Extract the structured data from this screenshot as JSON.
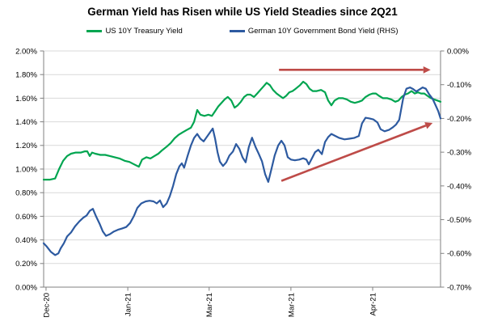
{
  "chart_data": {
    "type": "line",
    "title": "German Yield has Risen while US Yield Steadies since 2Q21",
    "grid": true,
    "legend_position": "top",
    "colors": {
      "us_line": "#00A550",
      "german_line": "#2D5AA0",
      "arrow": "#BE4B48",
      "gridline": "#D9D9D9",
      "axis": "#808080",
      "text": "#000000"
    },
    "left_axis": {
      "min": 0.0,
      "max": 2.0,
      "step": 0.2,
      "labels": [
        "2.00%",
        "1.80%",
        "1.60%",
        "1.40%",
        "1.20%",
        "1.00%",
        "0.80%",
        "0.60%",
        "0.40%",
        "0.20%",
        "0.00%"
      ]
    },
    "right_axis": {
      "min": -0.7,
      "max": 0.0,
      "step": 0.1,
      "labels": [
        "0.00%",
        "-0.10%",
        "-0.20%",
        "-0.30%",
        "-0.40%",
        "-0.50%",
        "-0.60%",
        "-0.70%"
      ]
    },
    "x_ticks": [
      {
        "t": 0.006,
        "label": "Dec-20"
      },
      {
        "t": 0.212,
        "label": "Jan-21"
      },
      {
        "t": 0.417,
        "label": "Mar-21"
      },
      {
        "t": 0.623,
        "label": "Mar-21"
      },
      {
        "t": 0.829,
        "label": "Apr-21"
      }
    ],
    "series": [
      {
        "name": "US 10Y Treasury Yield",
        "axis": "left",
        "color": "#00A550",
        "points": [
          [
            0.0,
            0.91
          ],
          [
            0.016,
            0.91
          ],
          [
            0.029,
            0.92
          ],
          [
            0.039,
            1.0
          ],
          [
            0.049,
            1.07
          ],
          [
            0.059,
            1.11
          ],
          [
            0.069,
            1.13
          ],
          [
            0.081,
            1.14
          ],
          [
            0.094,
            1.14
          ],
          [
            0.104,
            1.15
          ],
          [
            0.11,
            1.15
          ],
          [
            0.116,
            1.11
          ],
          [
            0.122,
            1.14
          ],
          [
            0.13,
            1.13
          ],
          [
            0.143,
            1.12
          ],
          [
            0.155,
            1.12
          ],
          [
            0.167,
            1.11
          ],
          [
            0.179,
            1.1
          ],
          [
            0.191,
            1.09
          ],
          [
            0.204,
            1.07
          ],
          [
            0.216,
            1.06
          ],
          [
            0.228,
            1.04
          ],
          [
            0.24,
            1.02
          ],
          [
            0.248,
            1.08
          ],
          [
            0.259,
            1.1
          ],
          [
            0.269,
            1.09
          ],
          [
            0.279,
            1.11
          ],
          [
            0.289,
            1.13
          ],
          [
            0.299,
            1.16
          ],
          [
            0.31,
            1.19
          ],
          [
            0.32,
            1.22
          ],
          [
            0.33,
            1.26
          ],
          [
            0.34,
            1.29
          ],
          [
            0.35,
            1.31
          ],
          [
            0.36,
            1.33
          ],
          [
            0.371,
            1.35
          ],
          [
            0.379,
            1.4
          ],
          [
            0.387,
            1.5
          ],
          [
            0.395,
            1.46
          ],
          [
            0.405,
            1.45
          ],
          [
            0.415,
            1.46
          ],
          [
            0.424,
            1.45
          ],
          [
            0.432,
            1.49
          ],
          [
            0.44,
            1.53
          ],
          [
            0.448,
            1.56
          ],
          [
            0.456,
            1.59
          ],
          [
            0.464,
            1.61
          ],
          [
            0.473,
            1.58
          ],
          [
            0.481,
            1.52
          ],
          [
            0.489,
            1.54
          ],
          [
            0.497,
            1.57
          ],
          [
            0.505,
            1.61
          ],
          [
            0.513,
            1.63
          ],
          [
            0.521,
            1.63
          ],
          [
            0.53,
            1.61
          ],
          [
            0.538,
            1.64
          ],
          [
            0.546,
            1.67
          ],
          [
            0.554,
            1.7
          ],
          [
            0.562,
            1.73
          ],
          [
            0.57,
            1.71
          ],
          [
            0.578,
            1.67
          ],
          [
            0.587,
            1.64
          ],
          [
            0.595,
            1.62
          ],
          [
            0.603,
            1.6
          ],
          [
            0.611,
            1.62
          ],
          [
            0.619,
            1.65
          ],
          [
            0.627,
            1.66
          ],
          [
            0.635,
            1.68
          ],
          [
            0.646,
            1.71
          ],
          [
            0.654,
            1.74
          ],
          [
            0.662,
            1.72
          ],
          [
            0.67,
            1.68
          ],
          [
            0.678,
            1.66
          ],
          [
            0.688,
            1.66
          ],
          [
            0.699,
            1.67
          ],
          [
            0.709,
            1.65
          ],
          [
            0.717,
            1.58
          ],
          [
            0.725,
            1.54
          ],
          [
            0.733,
            1.58
          ],
          [
            0.743,
            1.6
          ],
          [
            0.754,
            1.6
          ],
          [
            0.764,
            1.59
          ],
          [
            0.774,
            1.57
          ],
          [
            0.784,
            1.56
          ],
          [
            0.794,
            1.57
          ],
          [
            0.802,
            1.58
          ],
          [
            0.811,
            1.61
          ],
          [
            0.821,
            1.63
          ],
          [
            0.829,
            1.64
          ],
          [
            0.837,
            1.64
          ],
          [
            0.845,
            1.62
          ],
          [
            0.855,
            1.6
          ],
          [
            0.866,
            1.6
          ],
          [
            0.876,
            1.59
          ],
          [
            0.886,
            1.57
          ],
          [
            0.894,
            1.58
          ],
          [
            0.902,
            1.61
          ],
          [
            0.91,
            1.63
          ],
          [
            0.918,
            1.64
          ],
          [
            0.927,
            1.66
          ],
          [
            0.935,
            1.64
          ],
          [
            0.943,
            1.65
          ],
          [
            0.951,
            1.64
          ],
          [
            0.959,
            1.64
          ],
          [
            0.967,
            1.62
          ],
          [
            0.976,
            1.6
          ],
          [
            0.984,
            1.59
          ],
          [
            0.992,
            1.58
          ],
          [
            1.0,
            1.57
          ]
        ]
      },
      {
        "name": "German 10Y Government Bond Yield (RHS)",
        "axis": "right",
        "color": "#2D5AA0",
        "points": [
          [
            0.0,
            -0.57
          ],
          [
            0.008,
            -0.58
          ],
          [
            0.018,
            -0.595
          ],
          [
            0.029,
            -0.605
          ],
          [
            0.037,
            -0.6
          ],
          [
            0.043,
            -0.585
          ],
          [
            0.051,
            -0.57
          ],
          [
            0.059,
            -0.55
          ],
          [
            0.069,
            -0.538
          ],
          [
            0.079,
            -0.52
          ],
          [
            0.09,
            -0.505
          ],
          [
            0.1,
            -0.494
          ],
          [
            0.108,
            -0.488
          ],
          [
            0.116,
            -0.474
          ],
          [
            0.124,
            -0.468
          ],
          [
            0.132,
            -0.49
          ],
          [
            0.141,
            -0.512
          ],
          [
            0.149,
            -0.535
          ],
          [
            0.157,
            -0.548
          ],
          [
            0.167,
            -0.543
          ],
          [
            0.177,
            -0.535
          ],
          [
            0.187,
            -0.53
          ],
          [
            0.198,
            -0.526
          ],
          [
            0.208,
            -0.522
          ],
          [
            0.218,
            -0.51
          ],
          [
            0.228,
            -0.488
          ],
          [
            0.236,
            -0.465
          ],
          [
            0.246,
            -0.452
          ],
          [
            0.257,
            -0.446
          ],
          [
            0.267,
            -0.444
          ],
          [
            0.277,
            -0.446
          ],
          [
            0.285,
            -0.452
          ],
          [
            0.293,
            -0.443
          ],
          [
            0.301,
            -0.463
          ],
          [
            0.31,
            -0.452
          ],
          [
            0.318,
            -0.43
          ],
          [
            0.326,
            -0.4
          ],
          [
            0.334,
            -0.365
          ],
          [
            0.342,
            -0.342
          ],
          [
            0.348,
            -0.333
          ],
          [
            0.354,
            -0.346
          ],
          [
            0.363,
            -0.31
          ],
          [
            0.371,
            -0.28
          ],
          [
            0.379,
            -0.258
          ],
          [
            0.387,
            -0.246
          ],
          [
            0.395,
            -0.26
          ],
          [
            0.403,
            -0.268
          ],
          [
            0.411,
            -0.255
          ],
          [
            0.42,
            -0.24
          ],
          [
            0.426,
            -0.23
          ],
          [
            0.432,
            -0.26
          ],
          [
            0.438,
            -0.3
          ],
          [
            0.444,
            -0.328
          ],
          [
            0.452,
            -0.341
          ],
          [
            0.46,
            -0.33
          ],
          [
            0.468,
            -0.31
          ],
          [
            0.477,
            -0.298
          ],
          [
            0.485,
            -0.276
          ],
          [
            0.493,
            -0.29
          ],
          [
            0.501,
            -0.315
          ],
          [
            0.509,
            -0.33
          ],
          [
            0.517,
            -0.285
          ],
          [
            0.525,
            -0.257
          ],
          [
            0.534,
            -0.285
          ],
          [
            0.542,
            -0.305
          ],
          [
            0.55,
            -0.327
          ],
          [
            0.558,
            -0.365
          ],
          [
            0.566,
            -0.388
          ],
          [
            0.574,
            -0.35
          ],
          [
            0.582,
            -0.31
          ],
          [
            0.591,
            -0.28
          ],
          [
            0.599,
            -0.266
          ],
          [
            0.607,
            -0.28
          ],
          [
            0.615,
            -0.315
          ],
          [
            0.623,
            -0.322
          ],
          [
            0.633,
            -0.324
          ],
          [
            0.644,
            -0.322
          ],
          [
            0.654,
            -0.318
          ],
          [
            0.662,
            -0.322
          ],
          [
            0.668,
            -0.336
          ],
          [
            0.676,
            -0.318
          ],
          [
            0.684,
            -0.3
          ],
          [
            0.692,
            -0.293
          ],
          [
            0.701,
            -0.306
          ],
          [
            0.709,
            -0.27
          ],
          [
            0.717,
            -0.255
          ],
          [
            0.725,
            -0.246
          ],
          [
            0.735,
            -0.252
          ],
          [
            0.745,
            -0.258
          ],
          [
            0.758,
            -0.262
          ],
          [
            0.77,
            -0.26
          ],
          [
            0.782,
            -0.258
          ],
          [
            0.794,
            -0.252
          ],
          [
            0.802,
            -0.215
          ],
          [
            0.811,
            -0.198
          ],
          [
            0.821,
            -0.2
          ],
          [
            0.831,
            -0.203
          ],
          [
            0.841,
            -0.212
          ],
          [
            0.849,
            -0.232
          ],
          [
            0.859,
            -0.238
          ],
          [
            0.87,
            -0.234
          ],
          [
            0.88,
            -0.226
          ],
          [
            0.888,
            -0.218
          ],
          [
            0.896,
            -0.204
          ],
          [
            0.906,
            -0.14
          ],
          [
            0.914,
            -0.112
          ],
          [
            0.923,
            -0.108
          ],
          [
            0.931,
            -0.113
          ],
          [
            0.939,
            -0.12
          ],
          [
            0.947,
            -0.114
          ],
          [
            0.955,
            -0.108
          ],
          [
            0.963,
            -0.112
          ],
          [
            0.971,
            -0.128
          ],
          [
            0.98,
            -0.142
          ],
          [
            0.988,
            -0.162
          ],
          [
            0.994,
            -0.178
          ],
          [
            1.0,
            -0.2
          ]
        ]
      }
    ],
    "annotations": [
      {
        "type": "arrow",
        "name": "flat-trend-arrow",
        "axis": "left",
        "color": "#BE4B48",
        "from": [
          0.593,
          1.84
        ],
        "to": [
          0.975,
          1.84
        ]
      },
      {
        "type": "arrow",
        "name": "rising-trend-arrow",
        "axis": "left",
        "color": "#BE4B48",
        "from": [
          0.599,
          0.9
        ],
        "to": [
          0.98,
          1.39
        ]
      }
    ]
  }
}
